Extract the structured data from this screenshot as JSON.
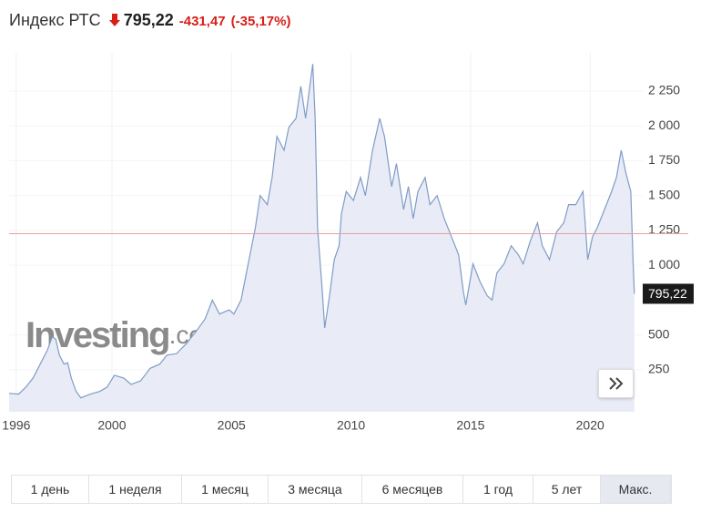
{
  "header": {
    "name": "Индекс РТС",
    "price": "795,22",
    "change": "-431,47",
    "change_pct": "(-35,17%)"
  },
  "chart_data": {
    "type": "area",
    "color": "#7f9cc7",
    "fill": "#e9ecf6",
    "x": [
      1995.7,
      1996.1,
      1996.4,
      1996.7,
      1997.0,
      1997.3,
      1997.5,
      1997.65,
      1997.8,
      1998.0,
      1998.15,
      1998.3,
      1998.5,
      1998.7,
      1999.1,
      1999.5,
      1999.8,
      2000.1,
      2000.5,
      2000.8,
      2001.2,
      2001.6,
      2002.0,
      2002.3,
      2002.7,
      2003.1,
      2003.5,
      2003.9,
      2004.2,
      2004.5,
      2004.9,
      2005.1,
      2005.4,
      2005.7,
      2006.0,
      2006.2,
      2006.5,
      2006.7,
      2006.9,
      2007.2,
      2007.4,
      2007.7,
      2007.9,
      2008.1,
      2008.4,
      2008.5,
      2008.6,
      2008.8,
      2008.9,
      2009.1,
      2009.3,
      2009.5,
      2009.6,
      2009.8,
      2010.1,
      2010.4,
      2010.6,
      2010.9,
      2011.2,
      2011.4,
      2011.7,
      2011.9,
      2012.2,
      2012.4,
      2012.6,
      2012.8,
      2013.1,
      2013.3,
      2013.6,
      2013.9,
      2014.2,
      2014.5,
      2014.7,
      2014.8,
      2015.1,
      2015.4,
      2015.7,
      2015.9,
      2016.1,
      2016.4,
      2016.7,
      2017.0,
      2017.2,
      2017.5,
      2017.8,
      2018.0,
      2018.3,
      2018.6,
      2018.9,
      2019.1,
      2019.4,
      2019.7,
      2019.9,
      2020.1,
      2020.3,
      2020.6,
      2020.9,
      2021.1,
      2021.3,
      2021.5,
      2021.7,
      2021.8,
      2021.85
    ],
    "values": [
      80,
      75,
      125,
      190,
      290,
      390,
      485,
      470,
      355,
      290,
      300,
      190,
      95,
      48,
      75,
      95,
      125,
      210,
      190,
      145,
      170,
      260,
      290,
      355,
      365,
      435,
      520,
      615,
      750,
      650,
      680,
      650,
      750,
      1010,
      1270,
      1500,
      1435,
      1630,
      1925,
      1825,
      1990,
      2055,
      2285,
      2055,
      2445,
      2055,
      1270,
      810,
      550,
      780,
      1040,
      1140,
      1370,
      1530,
      1465,
      1630,
      1500,
      1825,
      2055,
      1925,
      1565,
      1730,
      1400,
      1565,
      1335,
      1530,
      1630,
      1435,
      1500,
      1335,
      1205,
      1075,
      810,
      715,
      1010,
      880,
      780,
      750,
      945,
      1010,
      1140,
      1075,
      1010,
      1175,
      1305,
      1140,
      1040,
      1240,
      1305,
      1435,
      1435,
      1530,
      1040,
      1205,
      1270,
      1400,
      1530,
      1630,
      1825,
      1660,
      1530,
      1010,
      795.22
    ],
    "reference_line": 1226.69,
    "reference_color": "#e8a0a0",
    "xlim": [
      1995.7,
      2022.2
    ],
    "ylim": [
      -52,
      2525
    ],
    "xticks": [
      1996,
      2000,
      2005,
      2010,
      2015,
      2020
    ],
    "yticks": [
      {
        "value": 250,
        "label": "250"
      },
      {
        "value": 500,
        "label": "500"
      },
      {
        "value": 1000,
        "label": "1 000"
      },
      {
        "value": 1250,
        "label": "1 250"
      },
      {
        "value": 1500,
        "label": "1 500"
      },
      {
        "value": 1750,
        "label": "1 750"
      },
      {
        "value": 2000,
        "label": "2 000"
      },
      {
        "value": 2250,
        "label": "2 250"
      }
    ],
    "grid": true,
    "watermark": [
      "Investing",
      ".com"
    ]
  },
  "ranges": [
    "1 день",
    "1 неделя",
    "1 месяц",
    "3 месяца",
    "6 месяцев",
    "1 год",
    "5 лет",
    "Макс."
  ],
  "active_range": 7
}
